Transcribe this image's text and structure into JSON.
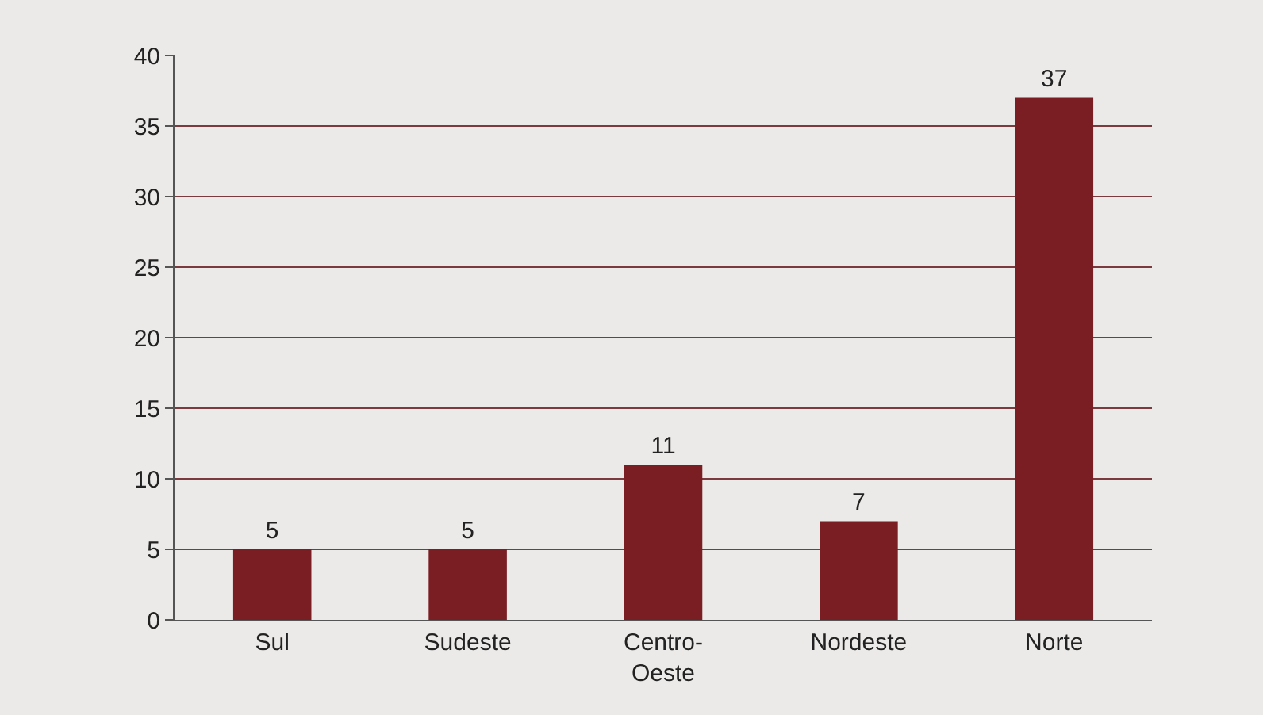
{
  "chart_data": {
    "type": "bar",
    "categories": [
      "Sul",
      "Sudeste",
      "Centro-\nOeste",
      "Nordeste",
      "Norte"
    ],
    "values": [
      5,
      5,
      11,
      7,
      37
    ],
    "color": "#7b1e24",
    "ylim": [
      0,
      40
    ],
    "yticks": [
      0,
      5,
      10,
      15,
      20,
      25,
      30,
      35,
      40
    ],
    "grid": "y",
    "data_labels": true,
    "legend": false
  }
}
